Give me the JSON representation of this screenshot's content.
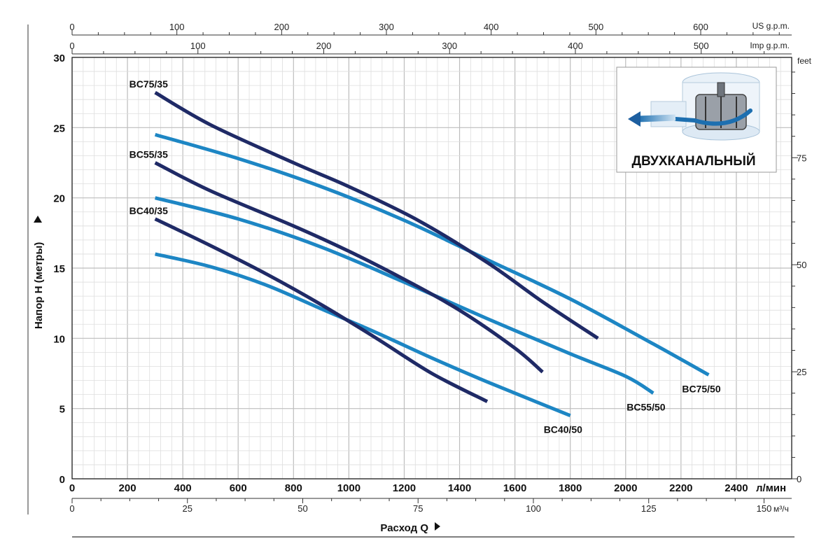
{
  "chart_data": {
    "type": "line",
    "xlabel": "Расход Q",
    "ylabel": "Напор H (метры)",
    "x_unit": "л/мин",
    "xlim": [
      0,
      2600
    ],
    "ylim": [
      0,
      30
    ],
    "x_ticks": [
      0,
      200,
      400,
      600,
      800,
      1000,
      1200,
      1400,
      1600,
      1800,
      2000,
      2200,
      2400
    ],
    "y_ticks": [
      0,
      5,
      10,
      15,
      20,
      25,
      30
    ],
    "secondary_axes": {
      "us_gpm": {
        "unit": "US g.p.m.",
        "ticks": [
          0,
          100,
          200,
          300,
          400,
          500,
          600
        ]
      },
      "imp_gpm": {
        "unit": "Imp g.p.m.",
        "ticks": [
          0,
          100,
          200,
          300,
          400,
          500
        ]
      },
      "m3h": {
        "unit": "м³/ч",
        "ticks": [
          0,
          25,
          50,
          75,
          100,
          125,
          150
        ]
      },
      "feet": {
        "unit": "feet",
        "ticks": [
          0,
          25,
          50,
          75
        ]
      }
    },
    "grid": true,
    "legend": "none",
    "series": [
      {
        "name": "BC75/35",
        "color": "#1f2a66",
        "x": [
          300,
          500,
          800,
          1000,
          1250,
          1500,
          1700,
          1900
        ],
        "y": [
          27.5,
          25.2,
          22.5,
          20.8,
          18.4,
          15.4,
          12.6,
          10.0
        ]
      },
      {
        "name": "BC55/35",
        "color": "#1f2a66",
        "x": [
          300,
          500,
          800,
          1000,
          1200,
          1400,
          1600,
          1700
        ],
        "y": [
          22.5,
          20.5,
          18.0,
          16.2,
          14.2,
          12.0,
          9.3,
          7.6
        ]
      },
      {
        "name": "BC40/35",
        "color": "#1f2a66",
        "x": [
          300,
          500,
          700,
          900,
          1100,
          1300,
          1500
        ],
        "y": [
          18.5,
          16.6,
          14.6,
          12.4,
          10.0,
          7.5,
          5.5
        ]
      },
      {
        "name": "BC75/50",
        "color": "#1d86c4",
        "x": [
          300,
          600,
          900,
          1200,
          1500,
          1800,
          2100,
          2300
        ],
        "y": [
          24.5,
          22.8,
          20.8,
          18.4,
          15.6,
          12.8,
          9.6,
          7.4
        ]
      },
      {
        "name": "BC55/50",
        "color": "#1d86c4",
        "x": [
          300,
          600,
          900,
          1200,
          1500,
          1800,
          2000,
          2100
        ],
        "y": [
          20.0,
          18.5,
          16.5,
          14.0,
          11.4,
          8.9,
          7.3,
          6.1
        ]
      },
      {
        "name": "BC40/50",
        "color": "#1d86c4",
        "x": [
          300,
          500,
          700,
          900,
          1100,
          1300,
          1500,
          1800
        ],
        "y": [
          16.0,
          15.1,
          13.8,
          12.1,
          10.4,
          8.6,
          6.9,
          4.5
        ]
      }
    ],
    "inset": {
      "text": "ДВУХКАНАЛЬНЫЙ"
    }
  },
  "colors": {
    "dark_series": "#1f2a66",
    "light_series": "#1d86c4",
    "grid": "#c8c8c8"
  }
}
